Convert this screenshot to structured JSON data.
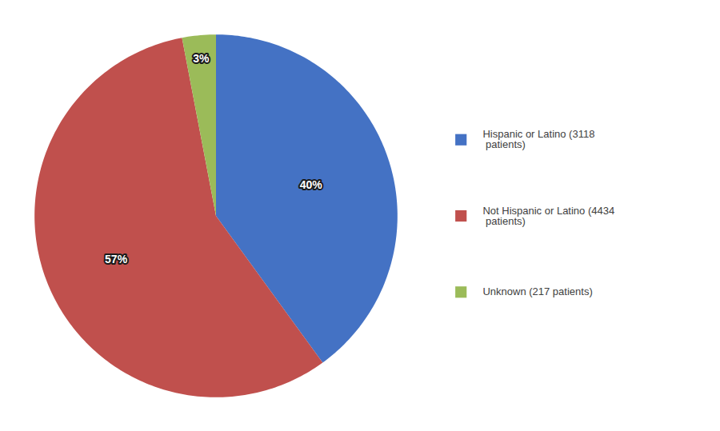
{
  "chart_data": {
    "type": "pie",
    "categories": [
      "Hispanic or Latino (3118\n patients)",
      "Not Hispanic or Latino (4434\n patients)",
      "Unknown (217 patients)"
    ],
    "values": [
      40,
      57,
      3
    ],
    "value_labels": [
      "40%",
      "57%",
      "3%"
    ],
    "colors": [
      "#4472C4",
      "#C0504D",
      "#9BBB59"
    ],
    "data_labels": true
  }
}
